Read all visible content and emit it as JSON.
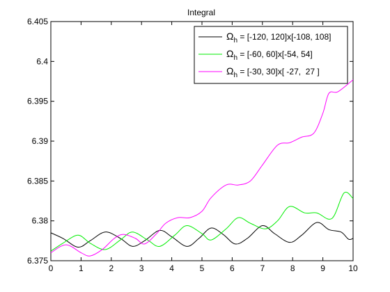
{
  "chart_data": {
    "type": "line",
    "title": "Integral",
    "xlabel": "",
    "ylabel": "",
    "xlim": [
      0,
      10
    ],
    "ylim": [
      6.375,
      6.405
    ],
    "xticks": [
      "0",
      "1",
      "2",
      "3",
      "4",
      "5",
      "6",
      "7",
      "8",
      "9",
      "10"
    ],
    "yticks": [
      "6.375",
      "6.38",
      "6.385",
      "6.39",
      "6.395",
      "6.4",
      "6.405"
    ],
    "grid": false,
    "legend_position": "top-right",
    "series": [
      {
        "name": "Ω_h = [-120, 120]x[-108, 108]",
        "legend_label": {
          "omega": "Ω",
          "sub": "h",
          "rest": " = [-120, 120]x[-108, 108]"
        },
        "color": "#000000",
        "x": [
          0,
          0.4,
          0.9,
          1.3,
          1.8,
          2.3,
          2.7,
          3.1,
          3.6,
          4.0,
          4.5,
          4.9,
          5.3,
          5.7,
          6.1,
          6.5,
          7.0,
          7.4,
          7.9,
          8.3,
          8.8,
          9.2,
          9.6,
          9.85,
          10
        ],
        "values": [
          6.3785,
          6.3778,
          6.3767,
          6.3775,
          6.3786,
          6.3778,
          6.3768,
          6.3775,
          6.3788,
          6.378,
          6.3768,
          6.3778,
          6.3791,
          6.3783,
          6.3771,
          6.3778,
          6.3794,
          6.3784,
          6.3773,
          6.3782,
          6.3798,
          6.3789,
          6.3786,
          6.3777,
          6.3778
        ]
      },
      {
        "name": "Ω_h = [-60, 60]x[-54, 54]",
        "legend_label": {
          "omega": "Ω",
          "sub": "h",
          "rest": " = [-60, 60]x[-54, 54]"
        },
        "color": "#00ee00",
        "x": [
          0,
          0.4,
          0.9,
          1.3,
          1.8,
          2.3,
          2.7,
          3.2,
          3.6,
          4.1,
          4.5,
          5.0,
          5.3,
          5.8,
          6.2,
          6.6,
          7.1,
          7.5,
          7.9,
          8.4,
          8.8,
          9.3,
          9.7,
          10
        ],
        "values": [
          6.3762,
          6.3772,
          6.3782,
          6.3772,
          6.3764,
          6.3776,
          6.3786,
          6.3776,
          6.3768,
          6.3782,
          6.3794,
          6.3784,
          6.3776,
          6.379,
          6.3804,
          6.3797,
          6.379,
          6.38,
          6.3818,
          6.381,
          6.381,
          6.3803,
          6.3835,
          6.3828
        ]
      },
      {
        "name": "Ω_h = [-30, 30]x[ -27,  27 ]",
        "legend_label": {
          "omega": "Ω",
          "sub": "h",
          "rest": " = [-30, 30]x[ -27,  27 ]"
        },
        "color": "#ff00ff",
        "x": [
          0,
          0.5,
          1.0,
          1.3,
          1.7,
          2.1,
          2.4,
          2.8,
          3.1,
          3.5,
          3.8,
          4.2,
          4.6,
          5.0,
          5.3,
          5.8,
          6.2,
          6.6,
          7.0,
          7.5,
          7.9,
          8.3,
          8.7,
          9.0,
          9.2,
          9.5,
          10
        ],
        "values": [
          6.376,
          6.377,
          6.376,
          6.3756,
          6.3764,
          6.3778,
          6.3783,
          6.3778,
          6.3771,
          6.3784,
          6.3797,
          6.3804,
          6.3804,
          6.3812,
          6.3829,
          6.3845,
          6.3845,
          6.385,
          6.387,
          6.3895,
          6.3898,
          6.3905,
          6.391,
          6.3935,
          6.396,
          6.3962,
          6.3977
        ]
      }
    ]
  }
}
